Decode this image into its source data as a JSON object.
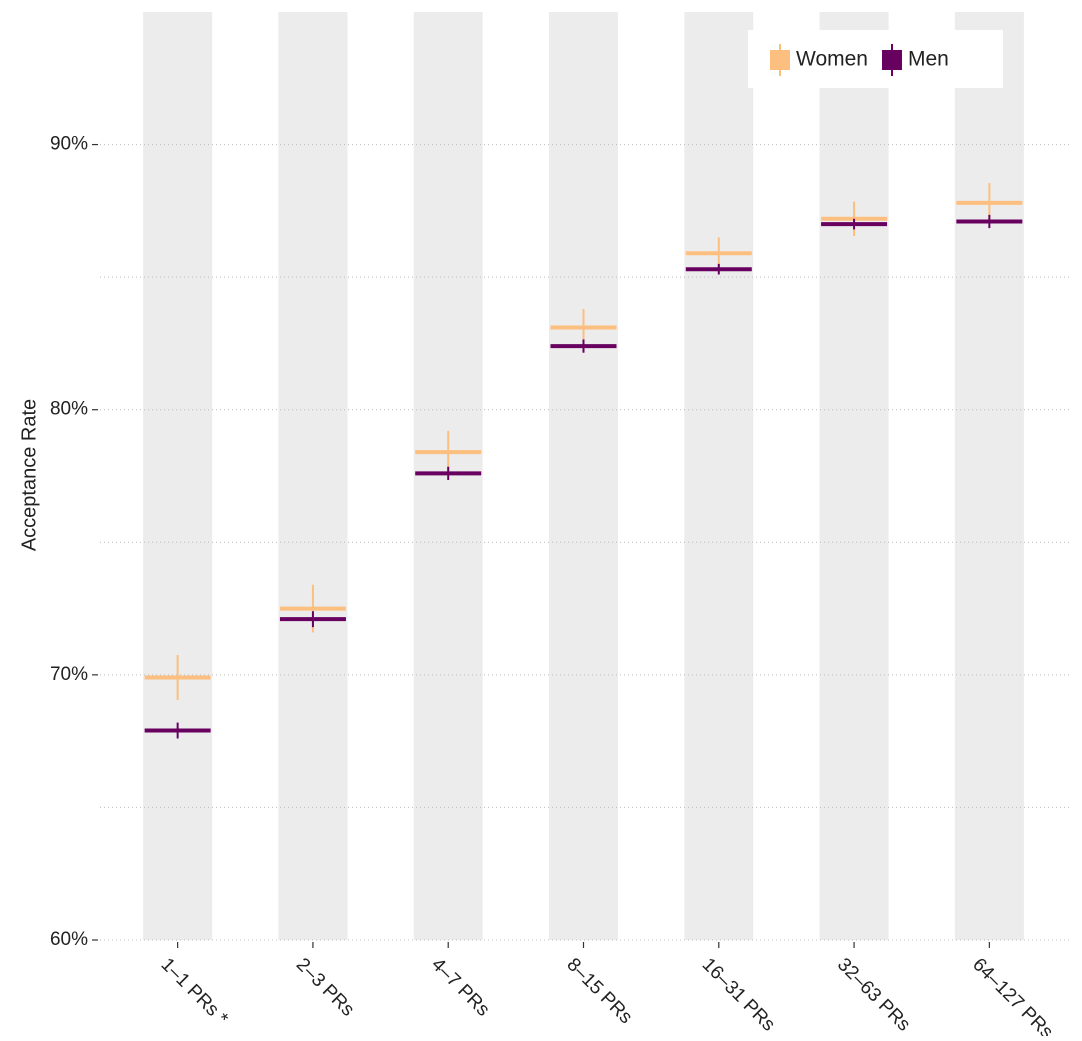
{
  "chart_data": {
    "type": "errorbar",
    "y_label": "Acceptance Rate",
    "categories": [
      "1–1 PRs *",
      "2–3 PRs",
      "4–7 PRs",
      "8–15 PRs",
      "16–31 PRs",
      "32–63 PRs",
      "64–127 PRs"
    ],
    "series": [
      {
        "name": "Women",
        "color": "#fdbf7f",
        "values": [
          69.9,
          72.5,
          78.4,
          83.1,
          85.9,
          87.2,
          87.8
        ],
        "errors": [
          0.85,
          0.9,
          0.8,
          0.7,
          0.6,
          0.65,
          0.75
        ]
      },
      {
        "name": "Men",
        "color": "#67005f",
        "values": [
          67.9,
          72.1,
          77.6,
          82.4,
          85.3,
          87.0,
          87.1
        ],
        "errors": [
          0.3,
          0.3,
          0.25,
          0.25,
          0.2,
          0.2,
          0.25
        ]
      }
    ],
    "ylim": [
      60,
      95
    ],
    "yticks": [
      {
        "value": 60,
        "label": "60%"
      },
      {
        "value": 70,
        "label": "70%"
      },
      {
        "value": 80,
        "label": "80%"
      },
      {
        "value": 90,
        "label": "90%"
      }
    ],
    "minor_yticks": [
      65,
      75,
      85
    ],
    "grid": true,
    "legend": "top-right"
  }
}
